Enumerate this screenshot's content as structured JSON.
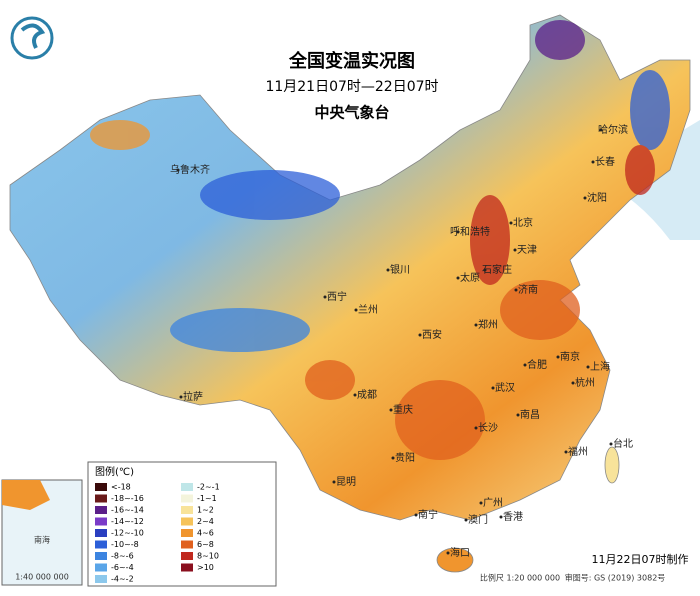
{
  "header": {
    "title": "全国变温实况图",
    "subtitle": "11月21日07时—22日07时",
    "agency": "中央气象台"
  },
  "legend": {
    "title": "图例(℃)",
    "items": [
      {
        "label": "<-18",
        "color": "#3a0a0a"
      },
      {
        "label": "-18~-16",
        "color": "#6a1a1a"
      },
      {
        "label": "-16~-14",
        "color": "#5b1f8a"
      },
      {
        "label": "-14~-12",
        "color": "#7a3bc8"
      },
      {
        "label": "-12~-10",
        "color": "#2a3fc0"
      },
      {
        "label": "-10~-8",
        "color": "#2c5fd8"
      },
      {
        "label": "-8~-6",
        "color": "#3c84e0"
      },
      {
        "label": "-6~-4",
        "color": "#5aa5e8"
      },
      {
        "label": "-4~-2",
        "color": "#8cc8ec"
      },
      {
        "label": "-2~-1",
        "color": "#bfe6e8"
      },
      {
        "label": "-1~1",
        "color": "#f4f4dc"
      },
      {
        "label": "1~2",
        "color": "#f8e39a"
      },
      {
        "label": "2~4",
        "color": "#f6c35a"
      },
      {
        "label": "4~6",
        "color": "#f0952e"
      },
      {
        "label": "6~8",
        "color": "#e0601e"
      },
      {
        "label": "8~10",
        "color": "#c0281e"
      },
      {
        "label": ">10",
        "color": "#8a0f1e"
      }
    ]
  },
  "cities": [
    "乌鲁木齐",
    "哈尔滨",
    "长春",
    "沈阳",
    "北京",
    "天津",
    "呼和浩特",
    "石家庄",
    "太原",
    "银川",
    "济南",
    "西宁",
    "兰州",
    "郑州",
    "西安",
    "合肥",
    "南京",
    "上海",
    "武汉",
    "杭州",
    "成都",
    "重庆",
    "拉萨",
    "南昌",
    "长沙",
    "贵阳",
    "福州",
    "台北",
    "昆明",
    "广州",
    "南宁",
    "澳门",
    "香港",
    "海口"
  ],
  "inset": {
    "sea": "南海",
    "scale": "1:40 000 000"
  },
  "footer": {
    "made": "11月22日07时制作",
    "scale": "比例尺 1:20 000 000",
    "approval": "审图号: GS (2019) 3082号"
  }
}
